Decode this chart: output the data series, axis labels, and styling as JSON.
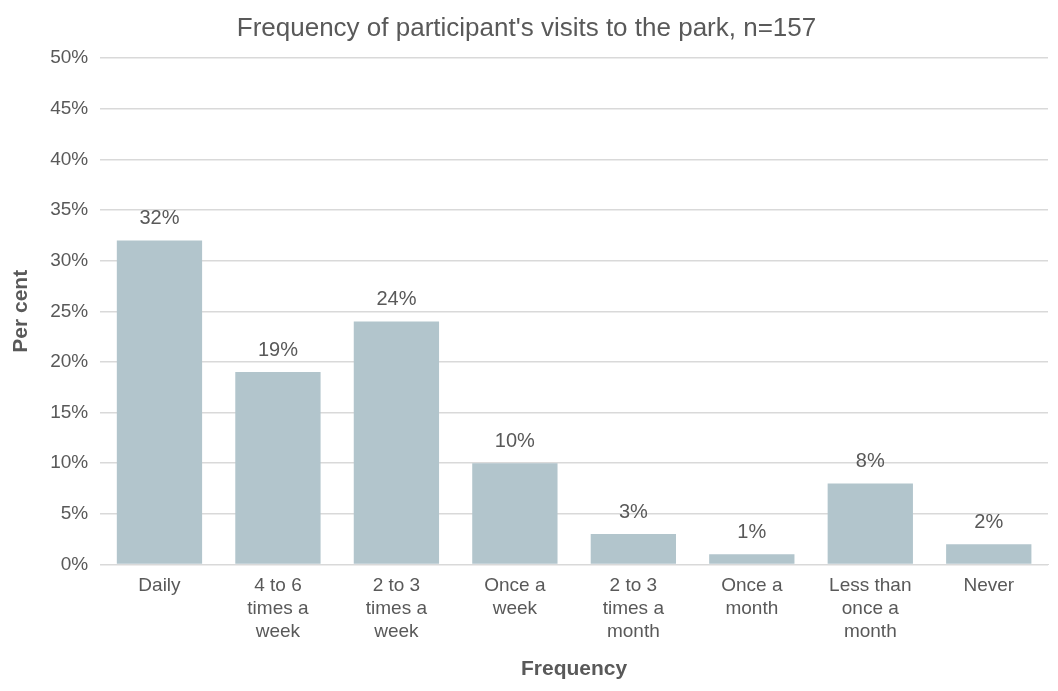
{
  "chart_data": {
    "type": "bar",
    "title": "Frequency of participant's visits to the park, n=157",
    "xlabel": "Frequency",
    "ylabel": "Per cent",
    "categories": [
      "Daily",
      "4 to 6 times a week",
      "2 to 3 times a week",
      "Once a week",
      "2 to 3 times a month",
      "Once a month",
      "Less than once a month",
      "Never"
    ],
    "values": [
      32,
      19,
      24,
      10,
      3,
      1,
      8,
      2
    ],
    "value_labels": [
      "32%",
      "19%",
      "24%",
      "10%",
      "3%",
      "1%",
      "8%",
      "2%"
    ],
    "color": "#b2c5cc",
    "ylim": [
      0,
      50
    ],
    "yticks": [
      {
        "value": 0,
        "label": "0%"
      },
      {
        "value": 5,
        "label": "5%"
      },
      {
        "value": 10,
        "label": "10%"
      },
      {
        "value": 15,
        "label": "15%"
      },
      {
        "value": 20,
        "label": "20%"
      },
      {
        "value": 25,
        "label": "25%"
      },
      {
        "value": 30,
        "label": "30%"
      },
      {
        "value": 35,
        "label": "35%"
      },
      {
        "value": 40,
        "label": "40%"
      },
      {
        "value": 45,
        "label": "45%"
      },
      {
        "value": 50,
        "label": "50%"
      }
    ],
    "grid": "y",
    "legend": false
  }
}
